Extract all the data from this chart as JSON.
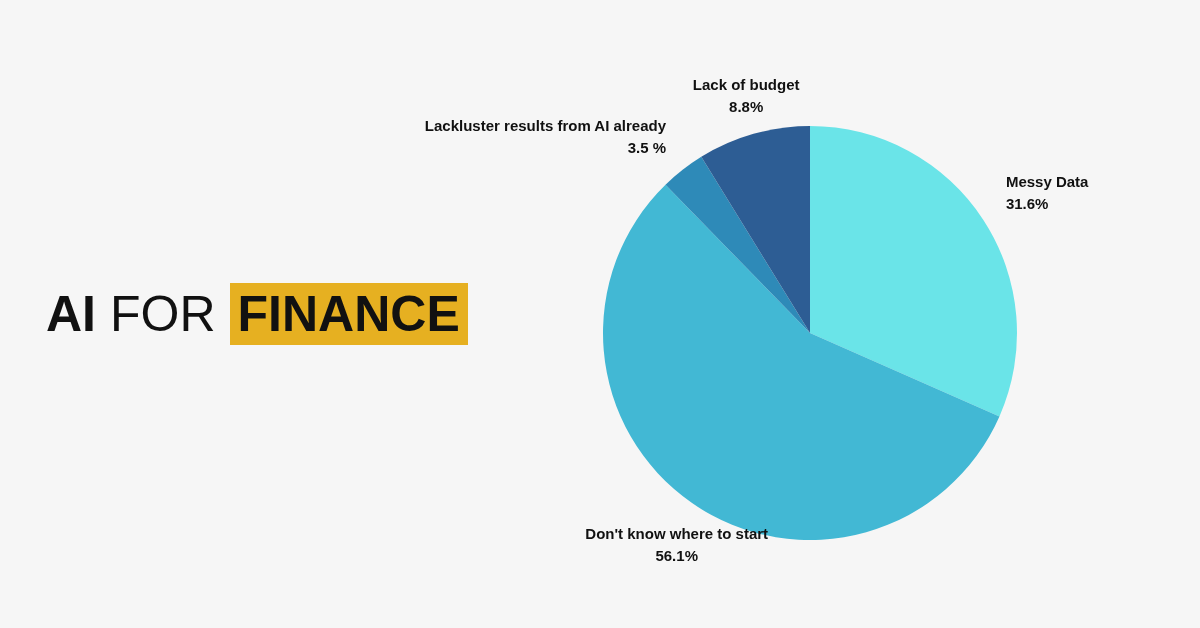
{
  "chart_data": {
    "type": "pie",
    "title": "AI FOR FINANCE",
    "categories": [
      "Messy Data",
      "Don't know where to start",
      "Lackluster results from AI already",
      "Lack of budget"
    ],
    "values": [
      31.6,
      56.1,
      3.5,
      8.8
    ],
    "value_labels": [
      "31.6%",
      "56.1%",
      "3.5 %",
      "8.8%"
    ],
    "colors": [
      "#6ae4e8",
      "#42b8d4",
      "#2e8ab8",
      "#2d5d94"
    ],
    "legend": false
  }
}
